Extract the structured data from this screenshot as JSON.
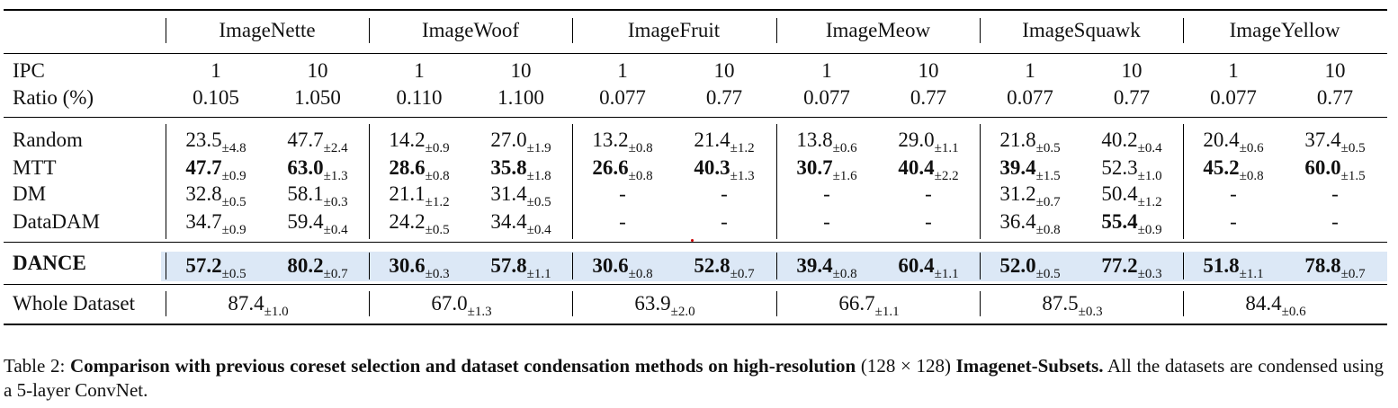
{
  "table": {
    "datasets": [
      "ImageNette",
      "ImageWoof",
      "ImageFruit",
      "ImageMeow",
      "ImageSquawk",
      "ImageYellow"
    ],
    "ipc_label": "IPC",
    "ratio_label": "Ratio (%)",
    "ipc": [
      "1",
      "10",
      "1",
      "10",
      "1",
      "10",
      "1",
      "10",
      "1",
      "10",
      "1",
      "10"
    ],
    "ratio": [
      "0.105",
      "1.050",
      "0.110",
      "1.100",
      "0.077",
      "0.77",
      "0.077",
      "0.77",
      "0.077",
      "0.77",
      "0.077",
      "0.77"
    ],
    "methods": [
      {
        "name": "Random",
        "bold": false,
        "cells": [
          {
            "v": "23.5",
            "s": "±4.8"
          },
          {
            "v": "47.7",
            "s": "±2.4"
          },
          {
            "v": "14.2",
            "s": "±0.9"
          },
          {
            "v": "27.0",
            "s": "±1.9"
          },
          {
            "v": "13.2",
            "s": "±0.8"
          },
          {
            "v": "21.4",
            "s": "±1.2"
          },
          {
            "v": "13.8",
            "s": "±0.6"
          },
          {
            "v": "29.0",
            "s": "±1.1"
          },
          {
            "v": "21.8",
            "s": "±0.5"
          },
          {
            "v": "40.2",
            "s": "±0.4"
          },
          {
            "v": "20.4",
            "s": "±0.6"
          },
          {
            "v": "37.4",
            "s": "±0.5"
          }
        ]
      },
      {
        "name": "MTT",
        "bold": false,
        "cells": [
          {
            "v": "47.7",
            "s": "±0.9",
            "b": true
          },
          {
            "v": "63.0",
            "s": "±1.3",
            "b": true
          },
          {
            "v": "28.6",
            "s": "±0.8",
            "b": true
          },
          {
            "v": "35.8",
            "s": "±1.8",
            "b": true
          },
          {
            "v": "26.6",
            "s": "±0.8",
            "b": true
          },
          {
            "v": "40.3",
            "s": "±1.3",
            "b": true
          },
          {
            "v": "30.7",
            "s": "±1.6",
            "b": true
          },
          {
            "v": "40.4",
            "s": "±2.2",
            "b": true
          },
          {
            "v": "39.4",
            "s": "±1.5",
            "b": true
          },
          {
            "v": "52.3",
            "s": "±1.0"
          },
          {
            "v": "45.2",
            "s": "±0.8",
            "b": true
          },
          {
            "v": "60.0",
            "s": "±1.5",
            "b": true
          }
        ]
      },
      {
        "name": "DM",
        "bold": false,
        "cells": [
          {
            "v": "32.8",
            "s": "±0.5"
          },
          {
            "v": "58.1",
            "s": "±0.3"
          },
          {
            "v": "21.1",
            "s": "±1.2"
          },
          {
            "v": "31.4",
            "s": "±0.5"
          },
          {
            "v": "-",
            "s": ""
          },
          {
            "v": "-",
            "s": ""
          },
          {
            "v": "-",
            "s": ""
          },
          {
            "v": "-",
            "s": ""
          },
          {
            "v": "31.2",
            "s": "±0.7"
          },
          {
            "v": "50.4",
            "s": "±1.2"
          },
          {
            "v": "-",
            "s": ""
          },
          {
            "v": "-",
            "s": ""
          }
        ]
      },
      {
        "name": "DataDAM",
        "bold": false,
        "cells": [
          {
            "v": "34.7",
            "s": "±0.9"
          },
          {
            "v": "59.4",
            "s": "±0.4"
          },
          {
            "v": "24.2",
            "s": "±0.5"
          },
          {
            "v": "34.4",
            "s": "±0.4"
          },
          {
            "v": "-",
            "s": ""
          },
          {
            "v": "-",
            "s": ""
          },
          {
            "v": "-",
            "s": ""
          },
          {
            "v": "-",
            "s": ""
          },
          {
            "v": "36.4",
            "s": "±0.8"
          },
          {
            "v": "55.4",
            "s": "±0.9",
            "b": true
          },
          {
            "v": "-",
            "s": ""
          },
          {
            "v": "-",
            "s": ""
          }
        ]
      }
    ],
    "dance": {
      "name": "DANCE",
      "cells": [
        {
          "v": "57.2",
          "s": "±0.5"
        },
        {
          "v": "80.2",
          "s": "±0.7"
        },
        {
          "v": "30.6",
          "s": "±0.3"
        },
        {
          "v": "57.8",
          "s": "±1.1"
        },
        {
          "v": "30.6",
          "s": "±0.8"
        },
        {
          "v": "52.8",
          "s": "±0.7"
        },
        {
          "v": "39.4",
          "s": "±0.8"
        },
        {
          "v": "60.4",
          "s": "±1.1"
        },
        {
          "v": "52.0",
          "s": "±0.5"
        },
        {
          "v": "77.2",
          "s": "±0.3"
        },
        {
          "v": "51.8",
          "s": "±1.1"
        },
        {
          "v": "78.8",
          "s": "±0.7"
        }
      ]
    },
    "whole": {
      "name": "Whole Dataset",
      "cells": [
        {
          "v": "87.4",
          "s": "±1.0"
        },
        {
          "v": "67.0",
          "s": "±1.3"
        },
        {
          "v": "63.9",
          "s": "±2.0"
        },
        {
          "v": "66.7",
          "s": "±1.1"
        },
        {
          "v": "87.5",
          "s": "±0.3"
        },
        {
          "v": "84.4",
          "s": "±0.6"
        }
      ]
    }
  },
  "caption": {
    "label": "Table 2:",
    "bold1": "Comparison with previous coreset selection and dataset condensation methods on high-resolution",
    "mid": "(128 × 128)",
    "bold2": "Imagenet-Subsets.",
    "rest": "All the datasets are condensed using a 5-layer ConvNet."
  },
  "colors": {
    "highlight": "#dce8f6",
    "rule": "#000000"
  }
}
